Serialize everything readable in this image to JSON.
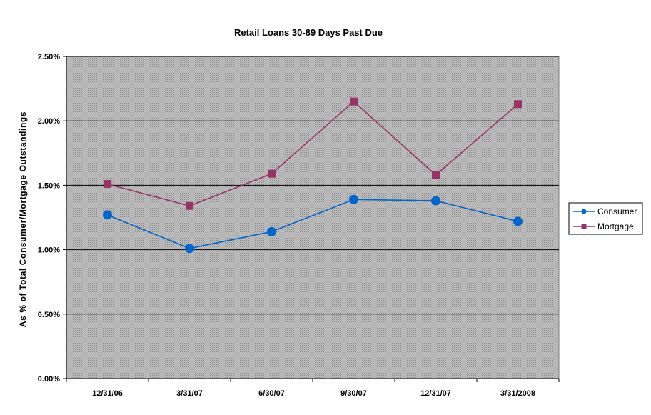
{
  "chart_data": {
    "type": "line",
    "title": "Retail Loans 30-89 Days Past Due",
    "xlabel": "",
    "ylabel": "As % of Total Consumer/Mortgage Outstandings",
    "categories": [
      "12/31/06",
      "3/31/07",
      "6/30/07",
      "9/30/07",
      "12/31/07",
      "3/31/2008"
    ],
    "ylim": [
      0,
      0.025
    ],
    "yticks": [
      0,
      0.005,
      0.01,
      0.015,
      0.02,
      0.025
    ],
    "ytick_labels": [
      "0.00%",
      "0.50%",
      "1.00%",
      "1.50%",
      "2.00%",
      "2.50%"
    ],
    "grid": true,
    "legend_position": "right",
    "plot_background": "#c0c0c0",
    "series": [
      {
        "name": "Consumer",
        "color": "#0066cc",
        "marker": "circle",
        "values": [
          0.0127,
          0.0101,
          0.0114,
          0.0139,
          0.0138,
          0.0122
        ]
      },
      {
        "name": "Mortgage",
        "color": "#993366",
        "marker": "square",
        "values": [
          0.0151,
          0.0134,
          0.0159,
          0.0215,
          0.0158,
          0.0213
        ]
      }
    ]
  }
}
